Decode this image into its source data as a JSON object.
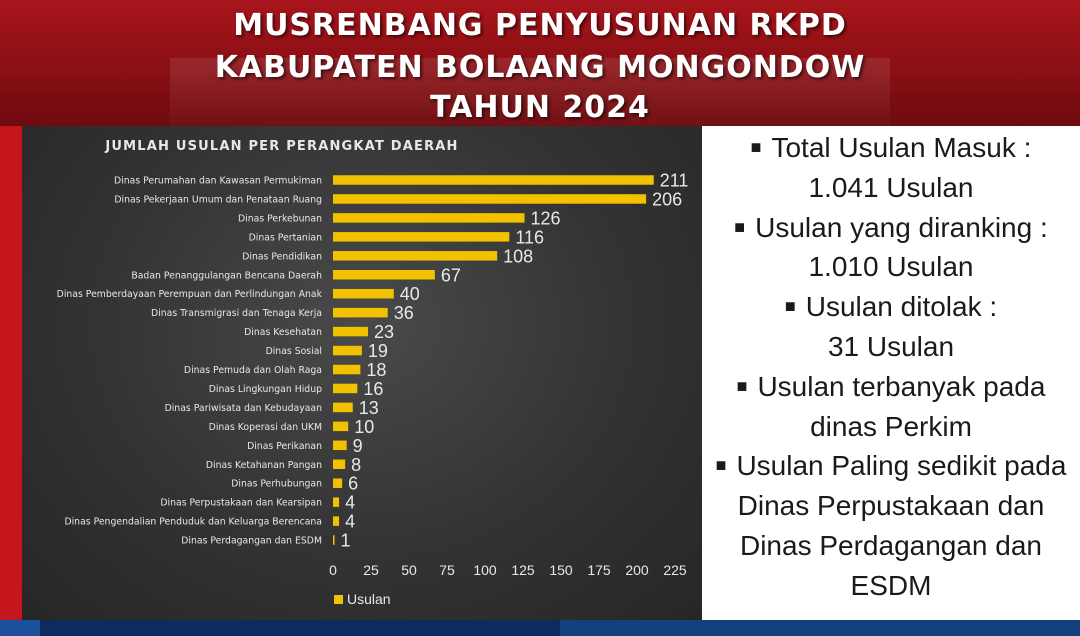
{
  "header": {
    "line1": "MUSRENBANG PENYUSUNAN RKPD",
    "line2": "KABUPATEN BOLAANG MONGONDOW",
    "line3": "TAHUN 2024"
  },
  "summary": {
    "lines": [
      {
        "text": "Total Usulan Masuk :",
        "bullet": true
      },
      {
        "text": "1.041 Usulan",
        "bullet": false
      },
      {
        "text": "Usulan yang diranking :",
        "bullet": true
      },
      {
        "text": "1.010 Usulan",
        "bullet": false
      },
      {
        "text": "Usulan ditolak :",
        "bullet": true
      },
      {
        "text": "31 Usulan",
        "bullet": false
      },
      {
        "text": "Usulan terbanyak pada",
        "bullet": true
      },
      {
        "text": "dinas Perkim",
        "bullet": false
      },
      {
        "text": "Usulan Paling sedikit pada",
        "bullet": true
      },
      {
        "text": "Dinas Perpustakaan dan",
        "bullet": false
      },
      {
        "text": "Dinas Perdagangan dan",
        "bullet": false
      },
      {
        "text": "ESDM",
        "bullet": false
      }
    ]
  },
  "chart_data": {
    "type": "bar",
    "orientation": "horizontal",
    "title": "JUMLAH USULAN PER PERANGKAT DAERAH",
    "categories": [
      "Dinas Perumahan dan Kawasan Permukiman",
      "Dinas Pekerjaan Umum dan Penataan Ruang",
      "Dinas Perkebunan",
      "Dinas Pertanian",
      "Dinas Pendidikan",
      "Badan Penanggulangan Bencana Daerah",
      "Dinas Pemberdayaan Perempuan dan Perlindungan Anak",
      "Dinas Transmigrasi dan Tenaga Kerja",
      "Dinas Kesehatan",
      "Dinas Sosial",
      "Dinas Pemuda dan Olah Raga",
      "Dinas Lingkungan Hidup",
      "Dinas Pariwisata dan Kebudayaan",
      "Dinas Koperasi dan UKM",
      "Dinas Perikanan",
      "Dinas Ketahanan Pangan",
      "Dinas Perhubungan",
      "Dinas Perpustakaan dan Kearsipan",
      "Dinas Pengendalian Penduduk dan Keluarga Berencana",
      "Dinas Perdagangan dan ESDM"
    ],
    "series": [
      {
        "name": "Usulan",
        "values": [
          211,
          206,
          126,
          116,
          108,
          67,
          40,
          36,
          23,
          19,
          18,
          16,
          13,
          10,
          9,
          8,
          6,
          4,
          4,
          1
        ]
      }
    ],
    "xlim": [
      0,
      225
    ],
    "xticks": [
      "0",
      "25",
      "50",
      "75",
      "100",
      "125",
      "150",
      "175",
      "200",
      "225"
    ],
    "legend_position": "bottom-left",
    "grid": false,
    "colors": {
      "bar": "#f2c200",
      "panel_bg": "#333333",
      "text": "#e8e8e8"
    }
  }
}
